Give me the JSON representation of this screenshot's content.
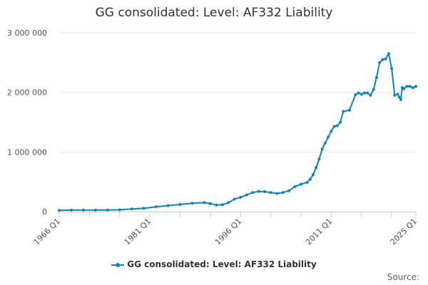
{
  "colors": {
    "series": "#0b84c6",
    "grid": "#e6e6e6",
    "axis": "#c0d0e0"
  },
  "chart_data": {
    "type": "line",
    "title": "GG consolidated: Level: AF332 Liability",
    "xlabel": "",
    "ylabel": "",
    "ylim": [
      0,
      3000000
    ],
    "xlim": [
      "1966 Q1",
      "2025 Q1"
    ],
    "yticks": [
      "0",
      "1 000 000",
      "2 000 000",
      "3 000 000"
    ],
    "yticks_values": [
      0,
      1000000,
      2000000,
      3000000
    ],
    "xticks": [
      "1966 Q1",
      "1981 Q1",
      "1996 Q1",
      "2011 Q1",
      "2025 Q1"
    ],
    "grid": true,
    "legend": "bottom-center",
    "series": [
      {
        "name": "GG consolidated: Level: AF332 Liability",
        "x": [
          "1966 Q1",
          "1968 Q1",
          "1970 Q1",
          "1972 Q1",
          "1974 Q1",
          "1976 Q1",
          "1978 Q1",
          "1980 Q1",
          "1982 Q1",
          "1984 Q1",
          "1986 Q1",
          "1988 Q1",
          "1990 Q1",
          "1991 Q1",
          "1992 Q1",
          "1993 Q1",
          "1994 Q1",
          "1995 Q1",
          "1996 Q1",
          "1997 Q1",
          "1998 Q1",
          "1999 Q1",
          "2000 Q1",
          "2001 Q1",
          "2002 Q1",
          "2003 Q1",
          "2004 Q1",
          "2005 Q1",
          "2006 Q1",
          "2007 Q1",
          "2007 Q3",
          "2008 Q1",
          "2008 Q3",
          "2009 Q1",
          "2009 Q3",
          "2010 Q1",
          "2010 Q3",
          "2011 Q1",
          "2011 Q3",
          "2012 Q1",
          "2012 Q3",
          "2013 Q1",
          "2014 Q1",
          "2015 Q1",
          "2015 Q3",
          "2016 Q1",
          "2016 Q3",
          "2017 Q1",
          "2017 Q3",
          "2018 Q1",
          "2018 Q3",
          "2019 Q1",
          "2019 Q3",
          "2020 Q1",
          "2020 Q3",
          "2021 Q1",
          "2021 Q3",
          "2022 Q1",
          "2022 Q2",
          "2022 Q3",
          "2022 Q4",
          "2023 Q1",
          "2023 Q3",
          "2024 Q1",
          "2024 Q3",
          "2025 Q1"
        ],
        "values": [
          20000,
          25000,
          25000,
          25000,
          27000,
          30000,
          45000,
          55000,
          80000,
          100000,
          120000,
          140000,
          150000,
          135000,
          110000,
          115000,
          150000,
          210000,
          240000,
          280000,
          320000,
          340000,
          335000,
          320000,
          305000,
          320000,
          350000,
          420000,
          460000,
          490000,
          540000,
          620000,
          740000,
          880000,
          1050000,
          1150000,
          1250000,
          1350000,
          1430000,
          1440000,
          1500000,
          1680000,
          1700000,
          1960000,
          1990000,
          1970000,
          1990000,
          1990000,
          1950000,
          2050000,
          2250000,
          2500000,
          2550000,
          2560000,
          2650000,
          2400000,
          1950000,
          1970000,
          1920000,
          1880000,
          2080000,
          2060000,
          2100000,
          2100000,
          2080000,
          2100000
        ]
      }
    ]
  },
  "legend_label": "GG consolidated: Level: AF332 Liability",
  "credits": "Source:"
}
